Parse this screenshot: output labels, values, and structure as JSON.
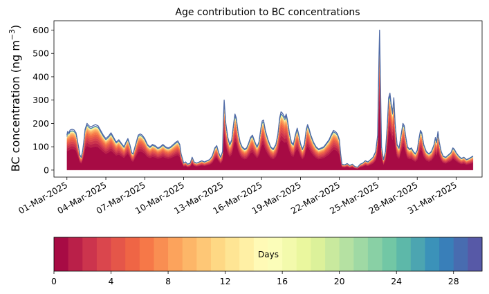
{
  "chart_data": {
    "type": "area",
    "title": "Age contribution to BC concentrations",
    "ylabel_main": "BC concentration (ng m",
    "ylabel_sup": "−3",
    "ylabel_close": ")",
    "ylim": [
      -30,
      640
    ],
    "yticks": [
      0,
      100,
      200,
      300,
      400,
      500,
      600
    ],
    "x_start_day": 1,
    "x_end_day": 32.3,
    "x_range": [
      0.0,
      33.0
    ],
    "xtick_days": [
      1,
      4,
      7,
      10,
      13,
      16,
      19,
      22,
      25,
      28,
      31
    ],
    "xtick_labels": [
      "01-Mar-2025",
      "04-Mar-2025",
      "07-Mar-2025",
      "10-Mar-2025",
      "13-Mar-2025",
      "16-Mar-2025",
      "19-Mar-2025",
      "22-Mar-2025",
      "25-Mar-2025",
      "28-Mar-2025",
      "31-Mar-2025"
    ],
    "stack_fractions": [
      0.52,
      0.07,
      0.06,
      0.05,
      0.045,
      0.04,
      0.035,
      0.03,
      0.025,
      0.02,
      0.015,
      0.01,
      0.008,
      0.006,
      0.004,
      0.003,
      0.002,
      0.002,
      0.002,
      0.002,
      0.002,
      0.002,
      0.002,
      0.002,
      0.002,
      0.002,
      0.002,
      0.002,
      0.002,
      0.002
    ],
    "total_series": [
      [
        1.0,
        150
      ],
      [
        1.05,
        165
      ],
      [
        1.15,
        160
      ],
      [
        1.25,
        172
      ],
      [
        1.4,
        175
      ],
      [
        1.55,
        172
      ],
      [
        1.7,
        160
      ],
      [
        1.8,
        130
      ],
      [
        1.9,
        100
      ],
      [
        2.0,
        65
      ],
      [
        2.1,
        55
      ],
      [
        2.2,
        80
      ],
      [
        2.3,
        120
      ],
      [
        2.4,
        175
      ],
      [
        2.55,
        200
      ],
      [
        2.7,
        190
      ],
      [
        2.85,
        185
      ],
      [
        3.0,
        190
      ],
      [
        3.2,
        195
      ],
      [
        3.4,
        190
      ],
      [
        3.6,
        170
      ],
      [
        3.8,
        150
      ],
      [
        4.0,
        135
      ],
      [
        4.2,
        145
      ],
      [
        4.4,
        160
      ],
      [
        4.6,
        140
      ],
      [
        4.8,
        120
      ],
      [
        5.0,
        130
      ],
      [
        5.2,
        115
      ],
      [
        5.4,
        100
      ],
      [
        5.55,
        120
      ],
      [
        5.7,
        135
      ],
      [
        5.85,
        110
      ],
      [
        6.0,
        75
      ],
      [
        6.1,
        70
      ],
      [
        6.25,
        100
      ],
      [
        6.4,
        130
      ],
      [
        6.5,
        150
      ],
      [
        6.65,
        155
      ],
      [
        6.8,
        150
      ],
      [
        7.0,
        135
      ],
      [
        7.2,
        110
      ],
      [
        7.4,
        100
      ],
      [
        7.6,
        110
      ],
      [
        7.8,
        105
      ],
      [
        8.0,
        95
      ],
      [
        8.2,
        100
      ],
      [
        8.4,
        110
      ],
      [
        8.6,
        100
      ],
      [
        8.8,
        95
      ],
      [
        9.0,
        100
      ],
      [
        9.2,
        110
      ],
      [
        9.4,
        120
      ],
      [
        9.55,
        125
      ],
      [
        9.7,
        110
      ],
      [
        9.8,
        70
      ],
      [
        9.9,
        50
      ],
      [
        10.0,
        30
      ],
      [
        10.15,
        35
      ],
      [
        10.3,
        25
      ],
      [
        10.5,
        30
      ],
      [
        10.65,
        55
      ],
      [
        10.8,
        35
      ],
      [
        11.0,
        30
      ],
      [
        11.2,
        35
      ],
      [
        11.4,
        40
      ],
      [
        11.6,
        35
      ],
      [
        11.8,
        40
      ],
      [
        12.0,
        45
      ],
      [
        12.2,
        60
      ],
      [
        12.4,
        95
      ],
      [
        12.55,
        105
      ],
      [
        12.7,
        75
      ],
      [
        12.85,
        55
      ],
      [
        13.0,
        80
      ],
      [
        13.05,
        200
      ],
      [
        13.12,
        300
      ],
      [
        13.17,
        260
      ],
      [
        13.25,
        200
      ],
      [
        13.4,
        140
      ],
      [
        13.55,
        110
      ],
      [
        13.7,
        130
      ],
      [
        13.85,
        200
      ],
      [
        13.95,
        240
      ],
      [
        14.05,
        225
      ],
      [
        14.2,
        160
      ],
      [
        14.35,
        120
      ],
      [
        14.5,
        100
      ],
      [
        14.7,
        90
      ],
      [
        14.85,
        95
      ],
      [
        15.0,
        115
      ],
      [
        15.15,
        140
      ],
      [
        15.3,
        150
      ],
      [
        15.5,
        120
      ],
      [
        15.65,
        100
      ],
      [
        15.8,
        120
      ],
      [
        15.95,
        180
      ],
      [
        16.05,
        210
      ],
      [
        16.15,
        215
      ],
      [
        16.3,
        170
      ],
      [
        16.5,
        130
      ],
      [
        16.7,
        100
      ],
      [
        16.9,
        90
      ],
      [
        17.1,
        110
      ],
      [
        17.25,
        150
      ],
      [
        17.4,
        225
      ],
      [
        17.5,
        250
      ],
      [
        17.6,
        245
      ],
      [
        17.7,
        235
      ],
      [
        17.8,
        225
      ],
      [
        17.9,
        240
      ],
      [
        18.0,
        215
      ],
      [
        18.15,
        160
      ],
      [
        18.3,
        120
      ],
      [
        18.45,
        110
      ],
      [
        18.6,
        150
      ],
      [
        18.75,
        180
      ],
      [
        18.9,
        145
      ],
      [
        19.0,
        115
      ],
      [
        19.15,
        90
      ],
      [
        19.3,
        110
      ],
      [
        19.45,
        175
      ],
      [
        19.55,
        195
      ],
      [
        19.65,
        180
      ],
      [
        19.8,
        150
      ],
      [
        20.0,
        120
      ],
      [
        20.2,
        100
      ],
      [
        20.4,
        90
      ],
      [
        20.6,
        95
      ],
      [
        20.8,
        100
      ],
      [
        21.0,
        115
      ],
      [
        21.2,
        130
      ],
      [
        21.4,
        155
      ],
      [
        21.55,
        170
      ],
      [
        21.7,
        165
      ],
      [
        21.85,
        155
      ],
      [
        22.0,
        130
      ],
      [
        22.1,
        70
      ],
      [
        22.2,
        25
      ],
      [
        22.4,
        22
      ],
      [
        22.6,
        28
      ],
      [
        22.8,
        20
      ],
      [
        23.0,
        25
      ],
      [
        23.2,
        15
      ],
      [
        23.4,
        12
      ],
      [
        23.6,
        25
      ],
      [
        23.8,
        30
      ],
      [
        24.0,
        40
      ],
      [
        24.2,
        35
      ],
      [
        24.4,
        45
      ],
      [
        24.6,
        55
      ],
      [
        24.8,
        80
      ],
      [
        24.95,
        150
      ],
      [
        25.05,
        480
      ],
      [
        25.1,
        600
      ],
      [
        25.15,
        420
      ],
      [
        25.25,
        100
      ],
      [
        25.4,
        45
      ],
      [
        25.55,
        80
      ],
      [
        25.7,
        200
      ],
      [
        25.8,
        310
      ],
      [
        25.9,
        330
      ],
      [
        26.0,
        280
      ],
      [
        26.1,
        250
      ],
      [
        26.2,
        310
      ],
      [
        26.3,
        200
      ],
      [
        26.45,
        110
      ],
      [
        26.6,
        95
      ],
      [
        26.75,
        150
      ],
      [
        26.9,
        200
      ],
      [
        27.0,
        190
      ],
      [
        27.1,
        150
      ],
      [
        27.25,
        100
      ],
      [
        27.4,
        90
      ],
      [
        27.55,
        95
      ],
      [
        27.7,
        80
      ],
      [
        27.85,
        70
      ],
      [
        28.0,
        85
      ],
      [
        28.15,
        140
      ],
      [
        28.25,
        170
      ],
      [
        28.35,
        160
      ],
      [
        28.5,
        110
      ],
      [
        28.7,
        80
      ],
      [
        28.9,
        70
      ],
      [
        29.1,
        80
      ],
      [
        29.3,
        110
      ],
      [
        29.4,
        140
      ],
      [
        29.5,
        120
      ],
      [
        29.55,
        145
      ],
      [
        29.6,
        165
      ],
      [
        29.7,
        120
      ],
      [
        29.85,
        80
      ],
      [
        30.0,
        60
      ],
      [
        30.2,
        55
      ],
      [
        30.4,
        65
      ],
      [
        30.6,
        75
      ],
      [
        30.75,
        95
      ],
      [
        30.85,
        90
      ],
      [
        31.0,
        75
      ],
      [
        31.2,
        60
      ],
      [
        31.4,
        50
      ],
      [
        31.6,
        55
      ],
      [
        31.8,
        45
      ],
      [
        32.0,
        50
      ],
      [
        32.15,
        55
      ],
      [
        32.3,
        60
      ]
    ]
  },
  "colorbar": {
    "label": "Days",
    "vmin": 0,
    "vmax": 30,
    "n_colors": 30,
    "ticks": [
      0,
      4,
      8,
      12,
      16,
      20,
      24,
      28
    ],
    "tick_labels": [
      "0",
      "4",
      "8",
      "12",
      "16",
      "20",
      "24",
      "28"
    ]
  },
  "colors": {
    "outline": "#4f6aa6",
    "axis": "#000000",
    "background": "#ffffff"
  }
}
